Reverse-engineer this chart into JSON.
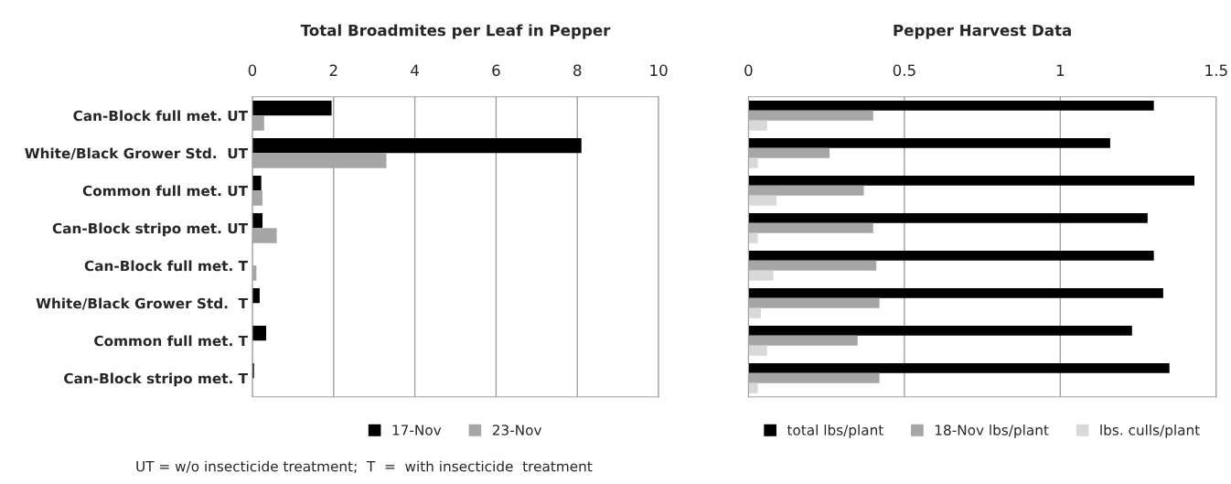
{
  "chart_data": [
    {
      "type": "bar",
      "orientation": "horizontal",
      "title": "Total Broadmites per Leaf in Pepper",
      "categories": [
        "Can-Block full met. UT",
        "White/Black Grower Std.  UT",
        "Common full met. UT",
        "Can-Block stripo met. UT",
        "Can-Block full met. T",
        "White/Black Grower Std.  T",
        "Common full met. T",
        "Can-Block stripo met. T"
      ],
      "series": [
        {
          "name": "17-Nov",
          "color": "#000000",
          "values": [
            1.95,
            8.1,
            0.22,
            0.25,
            0,
            0.18,
            0.34,
            0.04
          ]
        },
        {
          "name": "23-Nov",
          "color": "#a6a6a6",
          "values": [
            0.29,
            3.3,
            0.25,
            0.6,
            0.1,
            0,
            0,
            0
          ]
        }
      ],
      "xlim": [
        0,
        10
      ],
      "xticks": [
        0,
        2,
        4,
        6,
        8,
        10
      ],
      "grid": "x",
      "legend": "bottom",
      "annotations": [
        "UT = w/o insecticide treatment;  T  =  with insecticide  treatment"
      ]
    },
    {
      "type": "bar",
      "orientation": "horizontal",
      "title": "Pepper Harvest Data",
      "categories": [
        null,
        null,
        null,
        null,
        null,
        null,
        null,
        null
      ],
      "series": [
        {
          "name": "total lbs/plant",
          "color": "#000000",
          "values": [
            1.3,
            1.16,
            1.43,
            1.28,
            1.3,
            1.33,
            1.23,
            1.35
          ]
        },
        {
          "name": "18-Nov lbs/plant",
          "color": "#a6a6a6",
          "values": [
            0.4,
            0.26,
            0.37,
            0.4,
            0.41,
            0.42,
            0.35,
            0.42
          ]
        },
        {
          "name": "lbs. culls/plant",
          "color": "#d9d9d9",
          "values": [
            0.06,
            0.03,
            0.09,
            0.03,
            0.08,
            0.04,
            0.06,
            0.03
          ]
        }
      ],
      "xlim": [
        0,
        1.5
      ],
      "xticks": [
        0,
        {
          "value": 0.5,
          "label": "0.5"
        },
        1,
        1.5
      ],
      "grid": "x",
      "legend": "bottom",
      "tick_labels": "x"
    }
  ]
}
